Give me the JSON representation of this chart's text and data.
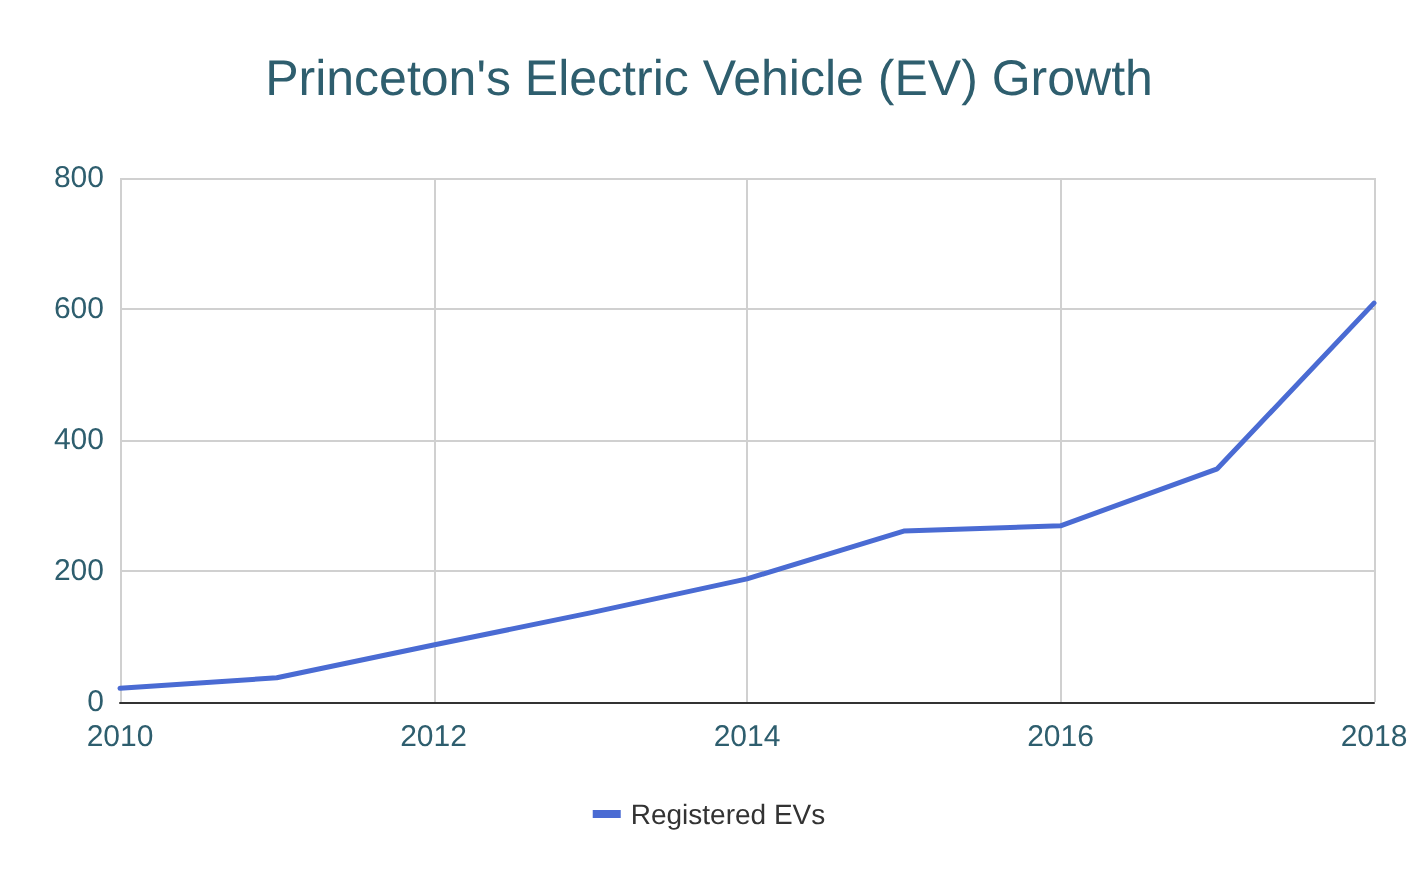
{
  "chart_data": {
    "type": "line",
    "title": "Princeton's Electric Vehicle (EV) Growth",
    "x": [
      2010,
      2011,
      2012,
      2013,
      2014,
      2015,
      2016,
      2017,
      2018
    ],
    "series": [
      {
        "name": "Registered EVs",
        "color": "#4a6bd3",
        "values": [
          21,
          37,
          87,
          136,
          188,
          261,
          269,
          356,
          609
        ]
      }
    ],
    "xlim": [
      2010,
      2018
    ],
    "xticks": [
      2010,
      2012,
      2014,
      2016,
      2018
    ],
    "ylim": [
      0,
      800
    ],
    "yticks": [
      0,
      200,
      400,
      600,
      800
    ],
    "grid": true,
    "legend": "bottom",
    "marker": "none",
    "line_style": "solid"
  }
}
